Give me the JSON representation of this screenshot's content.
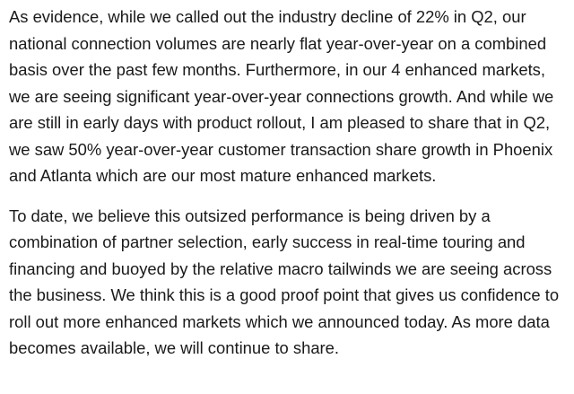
{
  "paragraphs": [
    "As evidence, while we called out the industry decline of 22% in Q2, our national connection volumes are nearly flat year-over-year on a combined basis over the past few months. Furthermore, in our 4 enhanced markets, we are seeing significant year-over-year connections growth. And while we are still in early days with product rollout, I am pleased to share that in Q2, we saw 50% year-over-year customer transaction share growth in Phoenix and Atlanta which are our most mature enhanced markets.",
    "To date, we believe this outsized performance is being driven by a combination of partner selection, early success in real-time touring and financing and buoyed by the relative macro tailwinds we are seeing across the business. We think this is a good proof point that gives us confidence to roll out more enhanced markets which we announced today. As more data becomes available, we will continue to share."
  ]
}
